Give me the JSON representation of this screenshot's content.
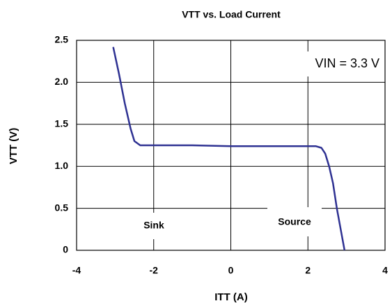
{
  "chart_data": {
    "type": "line",
    "title": "VTT vs. Load Current",
    "xlabel": "ITT (A)",
    "ylabel": "VTT (V)",
    "annotations": [
      "VIN = 3.3 V",
      "Sink",
      "Source"
    ],
    "series": [
      {
        "color": "#2e3192",
        "x": [
          -3.05,
          -2.9,
          -2.75,
          -2.6,
          -2.5,
          -2.35,
          -2.2,
          -1.0,
          0,
          1.0,
          2.2,
          2.35,
          2.45,
          2.55,
          2.65,
          2.75,
          2.85,
          2.95
        ],
        "values": [
          2.42,
          2.1,
          1.75,
          1.45,
          1.3,
          1.25,
          1.25,
          1.25,
          1.24,
          1.24,
          1.24,
          1.22,
          1.15,
          1.0,
          0.8,
          0.5,
          0.25,
          0
        ]
      }
    ],
    "xlim": [
      -4,
      4
    ],
    "xticks": [
      -4,
      -2,
      0,
      2,
      4
    ],
    "ylim": [
      0,
      2.5
    ],
    "yticks": [
      0,
      0.5,
      {
        "value": 1,
        "label": "1.0"
      },
      1.5,
      {
        "value": 2,
        "label": "2.0"
      },
      2.5
    ],
    "grid": true
  }
}
